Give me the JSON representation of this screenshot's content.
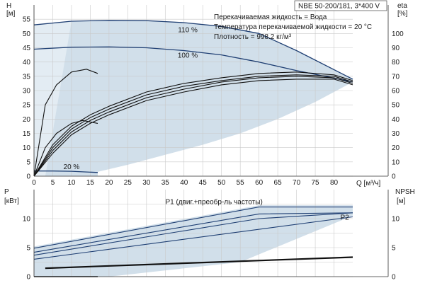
{
  "chart_data": [
    {
      "type": "line",
      "panel": "head-and-efficiency",
      "title": "NBE 50-200/181, 3*400 V",
      "annotations": [
        "Перекачиваемая жидкость = Вода",
        "Температура перекачиваемой жидкости = 20 °C",
        "Плотность = 998.2 кг/м³"
      ],
      "xlabel": "Q [м³/ч]",
      "ylabel_left": [
        "H",
        "[м]"
      ],
      "ylabel_right": [
        "eta",
        "[%]"
      ],
      "xlim": [
        0,
        85
      ],
      "xticks": [
        0,
        5,
        10,
        15,
        20,
        25,
        30,
        35,
        40,
        45,
        50,
        55,
        60,
        65,
        70,
        75,
        80
      ],
      "ylim_left": [
        0,
        60
      ],
      "yticks_left": [
        0,
        5,
        10,
        15,
        20,
        25,
        30,
        35,
        40,
        45,
        50,
        55
      ],
      "ylim_right": [
        0,
        120
      ],
      "yticks_right": [
        0,
        10,
        20,
        30,
        40,
        50,
        60,
        70,
        80,
        90,
        100
      ],
      "grid": true,
      "operating_area_color": "#c9d9e6",
      "curve_color": "#1f3f73",
      "efficiency_color": "#111111",
      "series": [
        {
          "name": "110 %",
          "axis": "left",
          "x": [
            0,
            10,
            20,
            30,
            40,
            50,
            60,
            70,
            85
          ],
          "values": [
            53,
            54.3,
            54.6,
            54.5,
            53.8,
            52.5,
            50,
            44,
            34
          ]
        },
        {
          "name": "100 %",
          "axis": "left",
          "x": [
            0,
            10,
            20,
            30,
            40,
            50,
            60,
            70,
            85
          ],
          "values": [
            44.5,
            45.2,
            45.3,
            45,
            44,
            42.5,
            40,
            37,
            33
          ]
        },
        {
          "name": "20 %",
          "axis": "left",
          "x": [
            0,
            5,
            10,
            17
          ],
          "values": [
            1.8,
            1.8,
            1.7,
            1.3
          ]
        },
        {
          "axis": "right",
          "x": [
            0,
            5,
            10,
            15,
            20,
            30,
            40,
            50,
            60,
            70,
            80,
            85
          ],
          "values": [
            0,
            20,
            33,
            41,
            47,
            57,
            63,
            67,
            70,
            71,
            70,
            66
          ]
        },
        {
          "axis": "right",
          "x": [
            0,
            5,
            10,
            15,
            20,
            30,
            40,
            50,
            60,
            70,
            80,
            85
          ],
          "values": [
            0,
            18,
            31,
            39,
            45,
            55,
            61,
            66,
            69,
            70,
            69,
            65
          ]
        },
        {
          "axis": "right",
          "x": [
            0,
            5,
            10,
            15,
            20,
            30,
            40,
            50,
            60,
            70,
            80,
            85
          ],
          "values": [
            0,
            22,
            35,
            43,
            49,
            59,
            65,
            69,
            72,
            73,
            71,
            67
          ]
        },
        {
          "axis": "right",
          "x": [
            0,
            5,
            10,
            15,
            20,
            30,
            40,
            50,
            60,
            70,
            80,
            85
          ],
          "values": [
            0,
            16,
            29,
            37,
            43,
            53,
            59,
            64,
            67,
            68,
            68,
            64
          ]
        },
        {
          "axis": "right",
          "x": [
            0,
            3,
            6,
            10,
            14,
            17
          ],
          "values": [
            0,
            50,
            64,
            73,
            75,
            72
          ]
        },
        {
          "axis": "right",
          "x": [
            0,
            3,
            6,
            10,
            13,
            17
          ],
          "values": [
            0,
            20,
            30,
            37,
            39,
            37
          ]
        }
      ]
    },
    {
      "type": "line",
      "panel": "power-and-npsh",
      "xlim": [
        0,
        85
      ],
      "ylabel_left": [
        "P",
        "[кВт]"
      ],
      "ylabel_right": [
        "NPSH",
        "[м]"
      ],
      "ylim_left": [
        0,
        15
      ],
      "yticks_left": [
        0,
        5,
        10
      ],
      "ylim_right": [
        0,
        15
      ],
      "yticks_right": [
        0,
        5,
        10
      ],
      "grid": true,
      "series": [
        {
          "name": "P1 (двиг.+преобр-ль частоты)",
          "axis": "left",
          "x": [
            0,
            60,
            85
          ],
          "values": [
            4.9,
            12,
            12
          ]
        },
        {
          "axis": "left",
          "x": [
            0,
            60,
            85
          ],
          "values": [
            4.2,
            10.8,
            11
          ]
        },
        {
          "name": "P2",
          "axis": "left",
          "x": [
            0,
            60,
            85
          ],
          "values": [
            3.7,
            10,
            11
          ]
        },
        {
          "axis": "left",
          "x": [
            0,
            85
          ],
          "values": [
            3,
            10.3
          ]
        },
        {
          "axis": "right",
          "x": [
            3,
            85
          ],
          "values": [
            1.5,
            3.4
          ]
        },
        {
          "axis": "right",
          "x": [
            3,
            85
          ],
          "values": [
            1.4,
            3.3
          ]
        },
        {
          "axis": "left",
          "x": [
            0,
            17
          ],
          "values": [
            0,
            0
          ]
        }
      ]
    }
  ]
}
